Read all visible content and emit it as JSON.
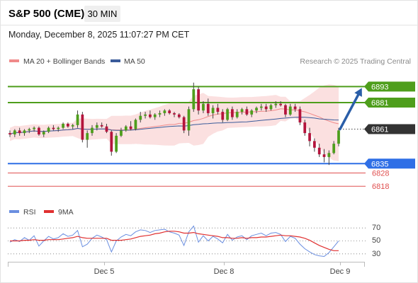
{
  "header": {
    "instrument": "S&P 500 (CME)",
    "timeframe": "30 MIN",
    "datetime": "Monday, December 8, 2025 11:07:27 PM CET"
  },
  "legend": {
    "ma20_bb": "MA 20 + Bollinger Bands",
    "ma50": "MA 50",
    "credit": "Research © 2025 Trading Central"
  },
  "rsi_legend": {
    "rsi": "RSI",
    "ma9": "9MA"
  },
  "colors": {
    "resistance": "#4e9e1c",
    "support": "#2f6fe6",
    "target_red": "#e05050",
    "last_price_bg": "#333333",
    "candle_up": "#4e9e1c",
    "candle_down": "#b4143c",
    "bollinger_fill": "#fadada",
    "ma20": "#f08a8a",
    "ma50": "#3a5b9a",
    "rsi": "#6a8ee0",
    "rsi_ma": "#e03030",
    "arrow": "#2a5ea8"
  },
  "chart_data": [
    {
      "type": "candlestick",
      "title": "S&P 500 (CME) 30 MIN",
      "x_ticks": [
        "Dec 5",
        "Dec 8",
        "Dec 9"
      ],
      "ylim": [
        6808,
        6906
      ],
      "ohlc": [
        [
          6858,
          6860,
          6855,
          6857
        ],
        [
          6857,
          6861,
          6855,
          6860
        ],
        [
          6860,
          6862,
          6856,
          6858
        ],
        [
          6858,
          6861,
          6856,
          6860
        ],
        [
          6860,
          6862,
          6858,
          6861
        ],
        [
          6861,
          6863,
          6859,
          6862
        ],
        [
          6862,
          6863,
          6856,
          6857
        ],
        [
          6857,
          6860,
          6855,
          6859
        ],
        [
          6859,
          6863,
          6858,
          6862
        ],
        [
          6862,
          6864,
          6860,
          6861
        ],
        [
          6861,
          6863,
          6859,
          6862
        ],
        [
          6862,
          6866,
          6861,
          6865
        ],
        [
          6865,
          6866,
          6862,
          6863
        ],
        [
          6863,
          6865,
          6861,
          6864
        ],
        [
          6864,
          6875,
          6862,
          6872
        ],
        [
          6872,
          6874,
          6851,
          6853
        ],
        [
          6853,
          6860,
          6847,
          6858
        ],
        [
          6858,
          6864,
          6856,
          6862
        ],
        [
          6862,
          6866,
          6860,
          6864
        ],
        [
          6864,
          6866,
          6862,
          6863
        ],
        [
          6863,
          6865,
          6858,
          6859
        ],
        [
          6859,
          6860,
          6841,
          6844
        ],
        [
          6844,
          6858,
          6843,
          6856
        ],
        [
          6856,
          6862,
          6855,
          6860
        ],
        [
          6860,
          6864,
          6859,
          6863
        ],
        [
          6863,
          6867,
          6860,
          6861
        ],
        [
          6861,
          6869,
          6860,
          6868
        ],
        [
          6868,
          6874,
          6866,
          6871
        ],
        [
          6871,
          6874,
          6869,
          6872
        ],
        [
          6872,
          6875,
          6869,
          6870
        ],
        [
          6870,
          6873,
          6868,
          6872
        ],
        [
          6872,
          6875,
          6870,
          6873
        ],
        [
          6873,
          6876,
          6871,
          6875
        ],
        [
          6875,
          6876,
          6872,
          6873
        ],
        [
          6873,
          6874,
          6870,
          6872
        ],
        [
          6872,
          6873,
          6869,
          6870
        ],
        [
          6870,
          6871,
          6858,
          6860
        ],
        [
          6860,
          6878,
          6856,
          6876
        ],
        [
          6876,
          6896,
          6874,
          6891
        ],
        [
          6891,
          6893,
          6872,
          6875
        ],
        [
          6875,
          6882,
          6873,
          6880
        ],
        [
          6880,
          6884,
          6871,
          6873
        ],
        [
          6873,
          6879,
          6869,
          6877
        ],
        [
          6877,
          6880,
          6872,
          6874
        ],
        [
          6874,
          6876,
          6866,
          6868
        ],
        [
          6868,
          6877,
          6867,
          6876
        ],
        [
          6876,
          6878,
          6868,
          6870
        ],
        [
          6870,
          6876,
          6869,
          6874
        ],
        [
          6874,
          6877,
          6872,
          6876
        ],
        [
          6876,
          6878,
          6871,
          6872
        ],
        [
          6872,
          6876,
          6870,
          6875
        ],
        [
          6875,
          6878,
          6873,
          6877
        ],
        [
          6877,
          6880,
          6875,
          6878
        ],
        [
          6878,
          6880,
          6874,
          6876
        ],
        [
          6876,
          6880,
          6875,
          6879
        ],
        [
          6879,
          6882,
          6877,
          6880
        ],
        [
          6880,
          6882,
          6878,
          6879
        ],
        [
          6879,
          6880,
          6870,
          6872
        ],
        [
          6872,
          6880,
          6871,
          6878
        ],
        [
          6878,
          6880,
          6874,
          6876
        ],
        [
          6876,
          6878,
          6864,
          6866
        ],
        [
          6866,
          6868,
          6856,
          6858
        ],
        [
          6858,
          6862,
          6848,
          6852
        ],
        [
          6852,
          6854,
          6844,
          6847
        ],
        [
          6847,
          6850,
          6840,
          6842
        ],
        [
          6842,
          6846,
          6836,
          6840
        ],
        [
          6840,
          6845,
          6834,
          6843
        ],
        [
          6843,
          6852,
          6842,
          6850
        ],
        [
          6850,
          6862,
          6848,
          6860
        ]
      ]
    },
    {
      "type": "line",
      "title": "RSI",
      "series": [
        {
          "name": "RSI",
          "values": [
            48,
            52,
            49,
            55,
            51,
            58,
            42,
            50,
            57,
            53,
            55,
            61,
            57,
            59,
            66,
            41,
            45,
            54,
            59,
            56,
            52,
            33,
            50,
            56,
            60,
            58,
            64,
            67,
            66,
            63,
            66,
            67,
            68,
            64,
            62,
            59,
            43,
            64,
            73,
            48,
            58,
            50,
            57,
            53,
            47,
            60,
            51,
            56,
            58,
            52,
            58,
            60,
            62,
            58,
            62,
            63,
            60,
            49,
            57,
            54,
            45,
            38,
            33,
            29,
            27,
            26,
            32,
            41,
            50
          ]
        },
        {
          "name": "9MA",
          "values": [
            50,
            50,
            50,
            51,
            51,
            52,
            51,
            51,
            52,
            52,
            52,
            53,
            54,
            55,
            57,
            55,
            54,
            54,
            54,
            54,
            54,
            51,
            51,
            51,
            52,
            53,
            55,
            57,
            58,
            59,
            61,
            62,
            64,
            65,
            65,
            64,
            62,
            62,
            63,
            61,
            60,
            59,
            58,
            57,
            55,
            55,
            54,
            54,
            55,
            54,
            55,
            55,
            56,
            56,
            57,
            58,
            59,
            58,
            58,
            57,
            56,
            54,
            51,
            47,
            43,
            40,
            37,
            35,
            35
          ]
        }
      ],
      "y_ticks": [
        70,
        50,
        30
      ],
      "ylim": [
        20,
        80
      ]
    }
  ],
  "levels": {
    "resistance_2": "6893",
    "resistance_1": "6881",
    "last": "6861",
    "support_1": "6835",
    "support_2": "6828",
    "support_3": "6818"
  },
  "rsi_ticks": {
    "t70": "70",
    "t50": "50",
    "t30": "30"
  },
  "xaxis": {
    "dec5": "Dec 5",
    "dec8": "Dec 8",
    "dec9": "Dec 9"
  }
}
